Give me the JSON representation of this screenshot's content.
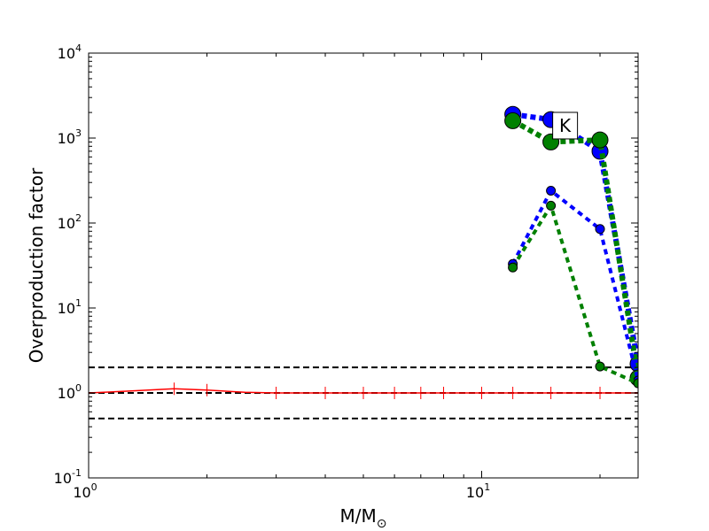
{
  "chart_data": {
    "type": "line",
    "title": "",
    "xlabel": {
      "main": "M/M",
      "sub": "⊙"
    },
    "ylabel": "Overproduction factor",
    "xscale": "log",
    "yscale": "log",
    "xlim": [
      1,
      25
    ],
    "ylim": [
      0.1,
      10000
    ],
    "grid": false,
    "legend": null,
    "annotation": {
      "text": "K",
      "x": 16.3,
      "y": 1400
    },
    "xticks": [
      {
        "value": 1,
        "base": "10",
        "exp": "0"
      },
      {
        "value": 10,
        "base": "10",
        "exp": "1"
      }
    ],
    "yticks": [
      {
        "value": 0.1,
        "base": "10",
        "exp": "-1"
      },
      {
        "value": 1,
        "base": "10",
        "exp": "0"
      },
      {
        "value": 10,
        "base": "10",
        "exp": "1"
      },
      {
        "value": 100,
        "base": "10",
        "exp": "2"
      },
      {
        "value": 1000,
        "base": "10",
        "exp": "3"
      },
      {
        "value": 10000,
        "base": "10",
        "exp": "4"
      }
    ],
    "reference_lines": [
      {
        "y": 2.0,
        "color": "#000000",
        "style": "dashed"
      },
      {
        "y": 1.0,
        "color": "#000000",
        "style": "dashed"
      },
      {
        "y": 0.5,
        "color": "#000000",
        "style": "dashed"
      }
    ],
    "series": [
      {
        "color": "#0000ff",
        "style": "dotted-thick",
        "marker_size": "large",
        "x": [
          12,
          15,
          20,
          25
        ],
        "y": [
          1900,
          1650,
          700,
          2.2
        ]
      },
      {
        "color": "#008000",
        "style": "dotted-thick",
        "marker_size": "large",
        "x": [
          12,
          15,
          20,
          25
        ],
        "y": [
          1600,
          900,
          950,
          1.5
        ]
      },
      {
        "color": "#0000ff",
        "style": "dotted",
        "marker_size": "small",
        "x": [
          12,
          15,
          20,
          25
        ],
        "y": [
          33,
          240,
          85,
          1.4
        ]
      },
      {
        "color": "#008000",
        "style": "dotted",
        "marker_size": "small",
        "x": [
          12,
          15,
          20,
          25
        ],
        "y": [
          30,
          160,
          2.05,
          1.3
        ]
      },
      {
        "color": "#ff0000",
        "style": "solid",
        "marker_size": "none",
        "x": [
          1,
          1.25,
          1.65,
          2,
          2.5,
          3,
          4,
          5,
          6,
          7,
          8,
          10,
          12,
          15,
          20,
          25
        ],
        "y": [
          1.0,
          1.05,
          1.12,
          1.08,
          1.02,
          1.0,
          1.0,
          1.0,
          1.0,
          1.0,
          1.0,
          1.0,
          1.0,
          1.0,
          1.0,
          1.0
        ],
        "tick_marks_x": [
          1.65,
          2,
          3,
          4,
          5,
          6,
          7,
          8,
          10,
          12,
          15,
          20,
          25
        ]
      }
    ]
  }
}
